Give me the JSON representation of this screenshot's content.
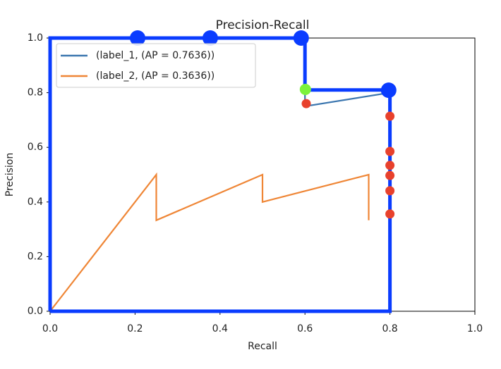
{
  "chart_data": {
    "type": "line",
    "title": "Precision-Recall",
    "xlabel": "Recall",
    "ylabel": "Precision",
    "xlim": [
      0,
      1
    ],
    "ylim": [
      0,
      1
    ],
    "xticks": [
      {
        "value": 0,
        "label": "0.0"
      },
      0.2,
      0.4,
      0.6,
      0.8,
      {
        "value": 1,
        "label": "1.0"
      }
    ],
    "yticks": [
      {
        "value": 0,
        "label": "0.0"
      },
      0.2,
      0.4,
      0.6,
      0.8,
      {
        "value": 1,
        "label": "1.0"
      }
    ],
    "legend": "upper left",
    "series": [
      {
        "name": "(label_1, (AP = 0.7636))",
        "color": "#3b76af",
        "x": [
          0,
          0.2,
          0.4,
          0.6,
          0.6,
          0.8
        ],
        "values": [
          1,
          1,
          1,
          1,
          0.75,
          0.8
        ]
      },
      {
        "name": "(label_2, (AP = 0.3636))",
        "color": "#ef8636",
        "x": [
          0,
          0.25,
          0.25,
          0.5,
          0.5,
          0.75,
          0.75
        ],
        "values": [
          0,
          0.5,
          0.333,
          0.5,
          0.4,
          0.5,
          0.333
        ]
      }
    ],
    "overlays": [
      {
        "type": "line",
        "color": "#0a3cff",
        "x": [
          0,
          0,
          0.6,
          0.6,
          0.8,
          0.8,
          0
        ],
        "values": [
          0,
          1,
          1,
          0.81,
          0.81,
          0,
          0
        ]
      },
      {
        "type": "scatter",
        "color": "#0a3cff",
        "marker_size": 11,
        "x": [
          0.206,
          0.377,
          0.591,
          0.797
        ],
        "values": [
          1,
          1,
          1,
          0.809
        ]
      },
      {
        "type": "scatter",
        "color": "#7cf23c",
        "marker_size": 8,
        "x": [
          0.601
        ],
        "values": [
          0.812
        ]
      },
      {
        "type": "scatter",
        "color": "#e8412c",
        "marker_size": 6.5,
        "x": [
          0.603,
          0.8,
          0.8,
          0.8,
          0.8,
          0.8,
          0.8
        ],
        "values": [
          0.76,
          0.714,
          0.585,
          0.534,
          0.497,
          0.441,
          0.356
        ]
      }
    ]
  }
}
